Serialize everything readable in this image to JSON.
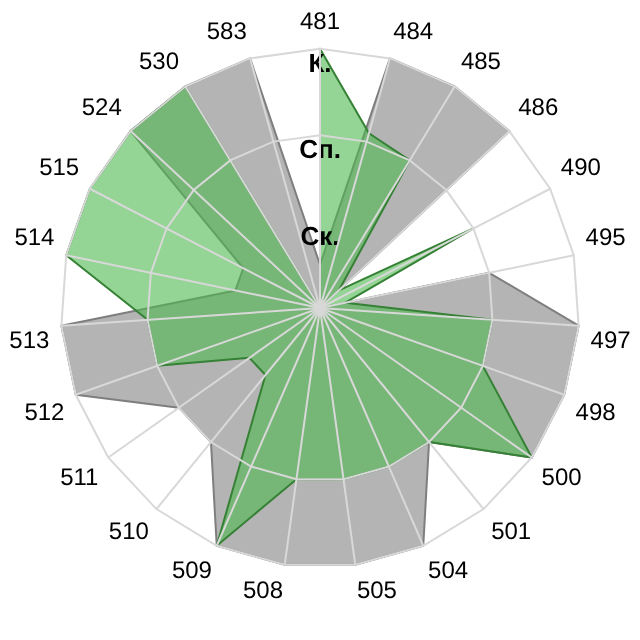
{
  "chart_data": {
    "type": "radar",
    "categories": [
      "481",
      "484",
      "485",
      "486",
      "490",
      "495",
      "497",
      "498",
      "500",
      "501",
      "504",
      "505",
      "508",
      "509",
      "510",
      "511",
      "512",
      "513",
      "514",
      "515",
      "524",
      "530",
      "583"
    ],
    "series": [
      {
        "color": "#b4b4b4",
        "values": [
          0.5,
          3,
          3,
          3,
          0,
          2,
          3,
          3,
          3,
          2,
          3,
          3,
          3,
          3,
          2,
          2,
          3,
          3,
          1,
          1,
          3,
          3,
          3
        ]
      },
      {
        "color": "#4cb84c",
        "values": [
          3,
          2.1,
          2,
          0.3,
          2,
          0.3,
          2,
          2,
          3,
          2,
          2,
          2,
          2,
          3,
          1,
          1,
          2,
          2,
          3,
          3,
          3,
          3,
          0
        ]
      }
    ],
    "ylim": [
      0,
      3
    ],
    "yticks": [
      {
        "value": 1,
        "label": "Ск."
      },
      {
        "value": 2,
        "label": "Сп."
      },
      {
        "value": 3,
        "label": "К."
      }
    ],
    "grid": true,
    "legend": false,
    "marker": "none"
  }
}
